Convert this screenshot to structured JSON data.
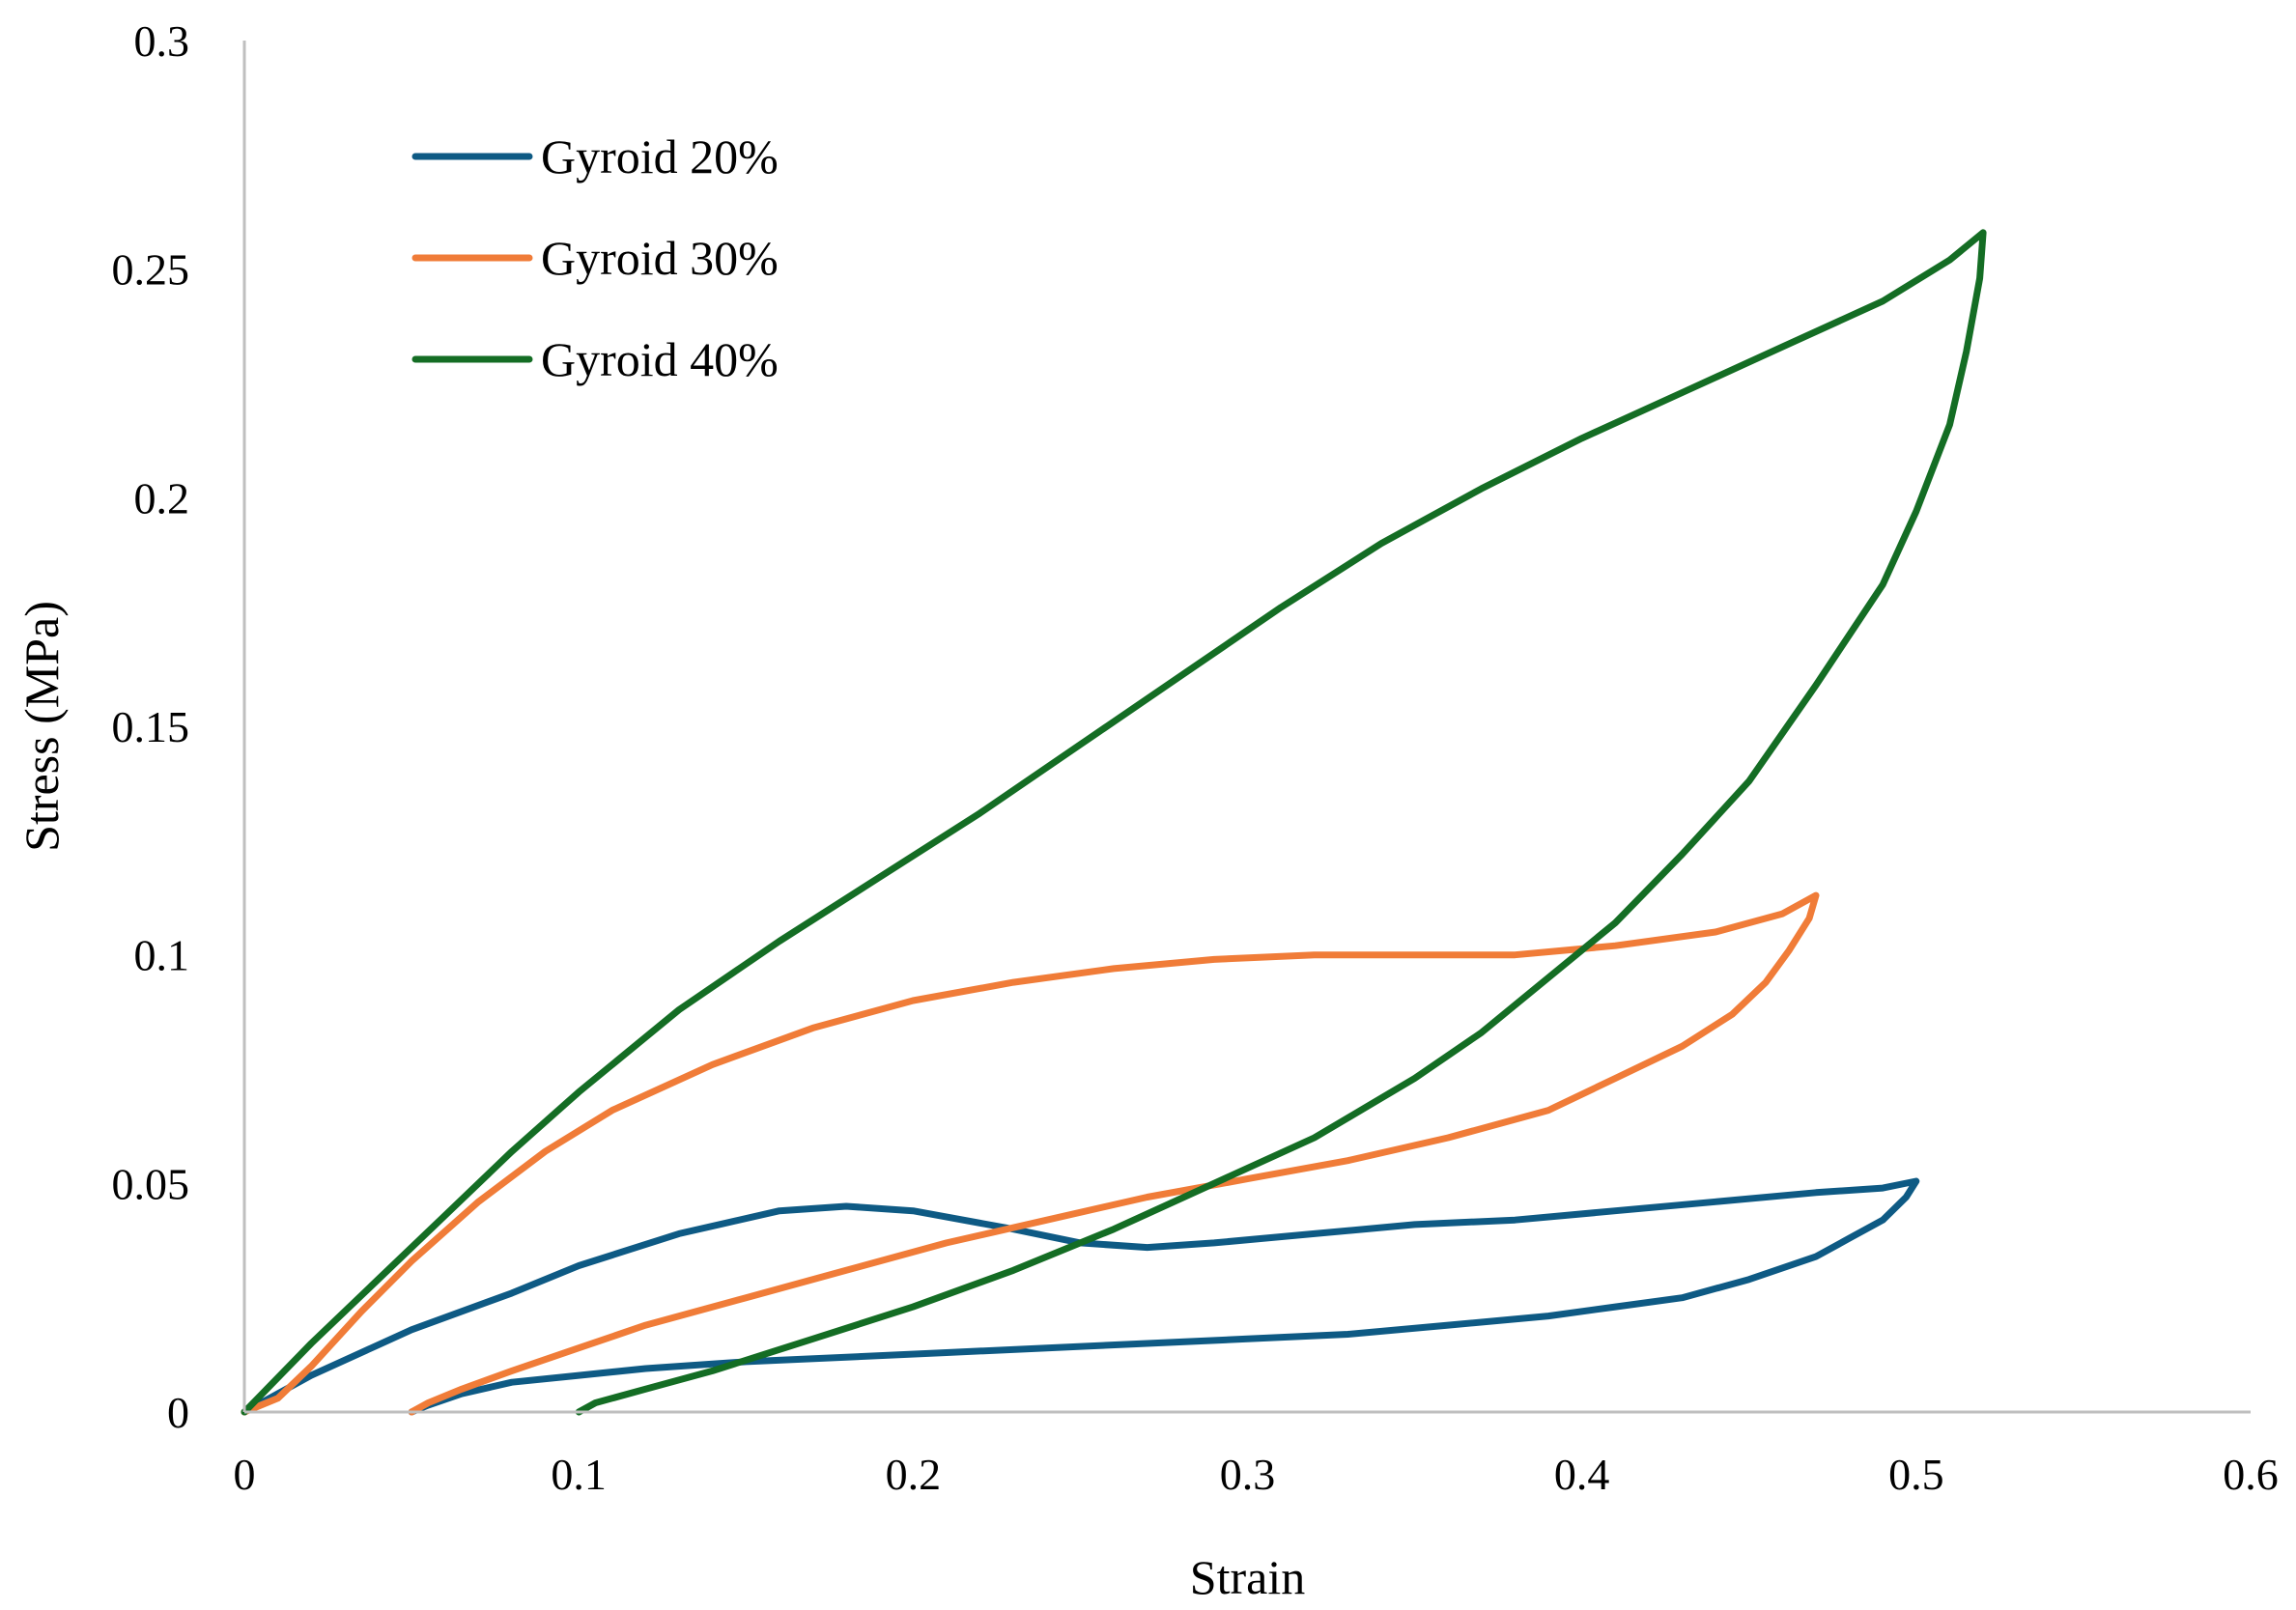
{
  "chart_data": {
    "type": "line",
    "title": "",
    "xlabel": "Strain",
    "ylabel": "Stress (MPa)",
    "xlim": [
      0,
      0.6
    ],
    "ylim": [
      0,
      0.3
    ],
    "xticks": [
      "0",
      "0.1",
      "0.2",
      "0.3",
      "0.4",
      "0.5",
      "0.6"
    ],
    "yticks": [
      "0",
      "0.05",
      "0.1",
      "0.15",
      "0.2",
      "0.25",
      "0.3"
    ],
    "grid": false,
    "legend_position": "top-left",
    "series": [
      {
        "name": "Gyroid 20%",
        "color": "#0e5a84",
        "x": [
          0,
          0.02,
          0.05,
          0.08,
          0.1,
          0.13,
          0.16,
          0.18,
          0.2,
          0.23,
          0.25,
          0.27,
          0.29,
          0.32,
          0.35,
          0.38,
          0.41,
          0.44,
          0.47,
          0.49,
          0.5,
          0.497,
          0.49,
          0.48,
          0.47,
          0.45,
          0.43,
          0.41,
          0.39,
          0.36,
          0.33,
          0.3,
          0.27,
          0.24,
          0.21,
          0.18,
          0.15,
          0.12,
          0.1,
          0.08,
          0.065,
          0.055,
          0.05
        ],
        "y": [
          0,
          0.008,
          0.018,
          0.026,
          0.032,
          0.039,
          0.044,
          0.045,
          0.044,
          0.04,
          0.037,
          0.036,
          0.037,
          0.039,
          0.041,
          0.042,
          0.044,
          0.046,
          0.048,
          0.049,
          0.0505,
          0.047,
          0.042,
          0.038,
          0.034,
          0.029,
          0.025,
          0.023,
          0.021,
          0.019,
          0.017,
          0.016,
          0.015,
          0.014,
          0.013,
          0.012,
          0.011,
          0.0095,
          0.008,
          0.0065,
          0.004,
          0.0015,
          0
        ]
      },
      {
        "name": "Gyroid 30%",
        "color": "#f07c38",
        "x": [
          0,
          0.01,
          0.02,
          0.035,
          0.05,
          0.07,
          0.09,
          0.11,
          0.14,
          0.17,
          0.2,
          0.23,
          0.26,
          0.29,
          0.32,
          0.35,
          0.38,
          0.41,
          0.44,
          0.46,
          0.47,
          0.468,
          0.462,
          0.455,
          0.445,
          0.43,
          0.41,
          0.39,
          0.36,
          0.33,
          0.3,
          0.27,
          0.24,
          0.21,
          0.18,
          0.15,
          0.12,
          0.1,
          0.08,
          0.065,
          0.055,
          0.05
        ],
        "y": [
          0,
          0.003,
          0.01,
          0.022,
          0.033,
          0.046,
          0.057,
          0.066,
          0.076,
          0.084,
          0.09,
          0.094,
          0.097,
          0.099,
          0.1,
          0.1,
          0.1,
          0.102,
          0.105,
          0.109,
          0.113,
          0.108,
          0.101,
          0.094,
          0.087,
          0.08,
          0.073,
          0.066,
          0.06,
          0.055,
          0.051,
          0.047,
          0.042,
          0.037,
          0.031,
          0.025,
          0.019,
          0.014,
          0.009,
          0.005,
          0.002,
          0
        ]
      },
      {
        "name": "Gyroid 40%",
        "color": "#146d24",
        "x": [
          0,
          0.02,
          0.04,
          0.06,
          0.08,
          0.1,
          0.13,
          0.16,
          0.19,
          0.22,
          0.25,
          0.28,
          0.31,
          0.34,
          0.37,
          0.4,
          0.43,
          0.46,
          0.49,
          0.51,
          0.52,
          0.519,
          0.515,
          0.51,
          0.5,
          0.49,
          0.47,
          0.45,
          0.43,
          0.41,
          0.39,
          0.37,
          0.35,
          0.32,
          0.29,
          0.26,
          0.23,
          0.2,
          0.17,
          0.14,
          0.12,
          0.105,
          0.1
        ],
        "y": [
          0,
          0.015,
          0.029,
          0.043,
          0.057,
          0.07,
          0.088,
          0.103,
          0.117,
          0.131,
          0.146,
          0.161,
          0.176,
          0.19,
          0.202,
          0.213,
          0.223,
          0.233,
          0.243,
          0.252,
          0.258,
          0.248,
          0.232,
          0.216,
          0.197,
          0.181,
          0.159,
          0.138,
          0.122,
          0.107,
          0.095,
          0.083,
          0.073,
          0.06,
          0.05,
          0.04,
          0.031,
          0.023,
          0.016,
          0.009,
          0.005,
          0.002,
          0
        ]
      }
    ]
  }
}
